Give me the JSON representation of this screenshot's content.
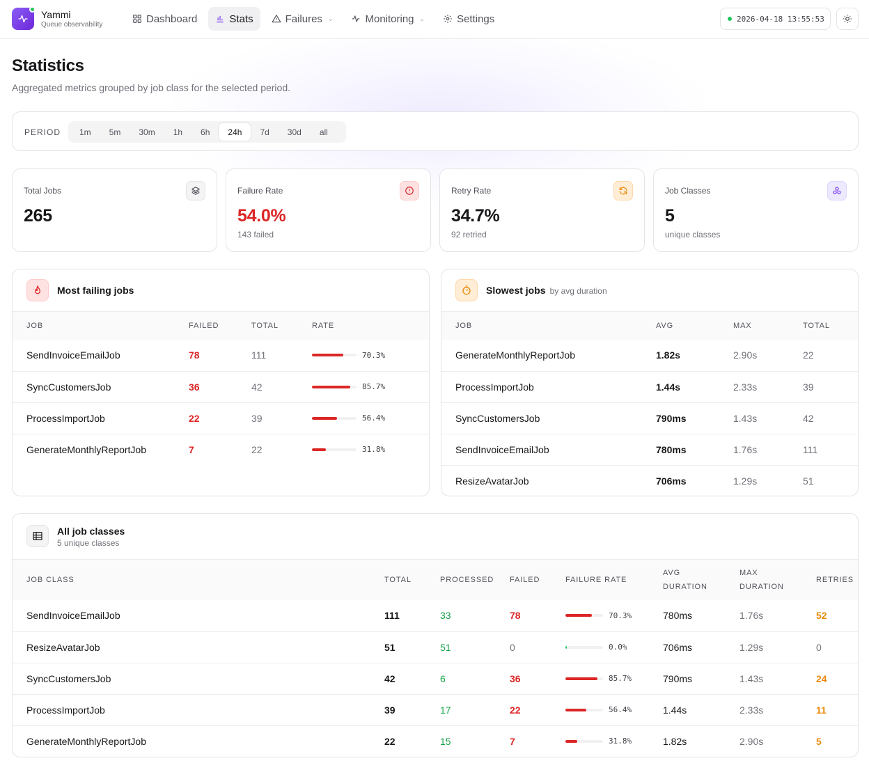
{
  "app": {
    "name": "Yammi",
    "subtitle": "Queue observability"
  },
  "nav": [
    {
      "label": "Dashboard",
      "icon": "dashboard-icon"
    },
    {
      "label": "Stats",
      "icon": "bar-chart-icon"
    },
    {
      "label": "Failures",
      "icon": "warning-icon"
    },
    {
      "label": "Monitoring",
      "icon": "pulse-icon"
    },
    {
      "label": "Settings",
      "icon": "gear-icon"
    }
  ],
  "clock": "2026-04-18 13:55:53",
  "page": {
    "title": "Statistics",
    "subtitle": "Aggregated metrics grouped by job class for the selected period."
  },
  "period": {
    "label": "PERIOD",
    "options": [
      "1m",
      "5m",
      "30m",
      "1h",
      "6h",
      "24h",
      "7d",
      "30d",
      "all"
    ],
    "selected": "24h"
  },
  "stats": {
    "total_jobs": {
      "label": "Total Jobs",
      "value": "265"
    },
    "failure_rate": {
      "label": "Failure Rate",
      "value": "54.0%",
      "sub": "143 failed"
    },
    "retry_rate": {
      "label": "Retry Rate",
      "value": "34.7%",
      "sub": "92 retried"
    },
    "job_classes": {
      "label": "Job Classes",
      "value": "5",
      "sub": "unique classes"
    }
  },
  "colors": {
    "red": "#dc2626",
    "green": "#16a34a",
    "orange": "#ea8a0c",
    "purple": "#7c3aed"
  },
  "failing": {
    "title": "Most failing jobs",
    "headers": [
      "JOB",
      "FAILED",
      "TOTAL",
      "RATE"
    ],
    "rows": [
      {
        "job": "SendInvoiceEmailJob",
        "failed": "78",
        "total": "111",
        "rate": "70.3%",
        "rate_value": 0.703
      },
      {
        "job": "SyncCustomersJob",
        "failed": "36",
        "total": "42",
        "rate": "85.7%",
        "rate_value": 0.857
      },
      {
        "job": "ProcessImportJob",
        "failed": "22",
        "total": "39",
        "rate": "56.4%",
        "rate_value": 0.564
      },
      {
        "job": "GenerateMonthlyReportJob",
        "failed": "7",
        "total": "22",
        "rate": "31.8%",
        "rate_value": 0.318
      }
    ]
  },
  "slowest": {
    "title": "Slowest jobs",
    "subtitle": "by avg duration",
    "headers": [
      "JOB",
      "AVG",
      "MAX",
      "TOTAL"
    ],
    "rows": [
      {
        "job": "GenerateMonthlyReportJob",
        "avg": "1.82s",
        "max": "2.90s",
        "total": "22"
      },
      {
        "job": "ProcessImportJob",
        "avg": "1.44s",
        "max": "2.33s",
        "total": "39"
      },
      {
        "job": "SyncCustomersJob",
        "avg": "790ms",
        "max": "1.43s",
        "total": "42"
      },
      {
        "job": "SendInvoiceEmailJob",
        "avg": "780ms",
        "max": "1.76s",
        "total": "111"
      },
      {
        "job": "ResizeAvatarJob",
        "avg": "706ms",
        "max": "1.29s",
        "total": "51"
      }
    ]
  },
  "all_classes": {
    "title": "All job classes",
    "subtitle": "5 unique classes",
    "headers": [
      "JOB CLASS",
      "TOTAL",
      "PROCESSED",
      "FAILED",
      "FAILURE RATE",
      "AVG",
      "DURATION",
      "MAX",
      "DURATION",
      "RETRIES"
    ],
    "rows": [
      {
        "job": "SendInvoiceEmailJob",
        "total": "111",
        "processed": "33",
        "failed": "78",
        "rate": "70.3%",
        "rate_value": 0.703,
        "avg": "780ms",
        "max": "1.76s",
        "retries": "52"
      },
      {
        "job": "ResizeAvatarJob",
        "total": "51",
        "processed": "51",
        "failed": "0",
        "rate": "0.0%",
        "rate_value": 0,
        "avg": "706ms",
        "max": "1.29s",
        "retries": "0"
      },
      {
        "job": "SyncCustomersJob",
        "total": "42",
        "processed": "6",
        "failed": "36",
        "rate": "85.7%",
        "rate_value": 0.857,
        "avg": "790ms",
        "max": "1.43s",
        "retries": "24"
      },
      {
        "job": "ProcessImportJob",
        "total": "39",
        "processed": "17",
        "failed": "22",
        "rate": "56.4%",
        "rate_value": 0.564,
        "avg": "1.44s",
        "max": "2.33s",
        "retries": "11"
      },
      {
        "job": "GenerateMonthlyReportJob",
        "total": "22",
        "processed": "15",
        "failed": "7",
        "rate": "31.8%",
        "rate_value": 0.318,
        "avg": "1.82s",
        "max": "2.90s",
        "retries": "5"
      }
    ]
  }
}
